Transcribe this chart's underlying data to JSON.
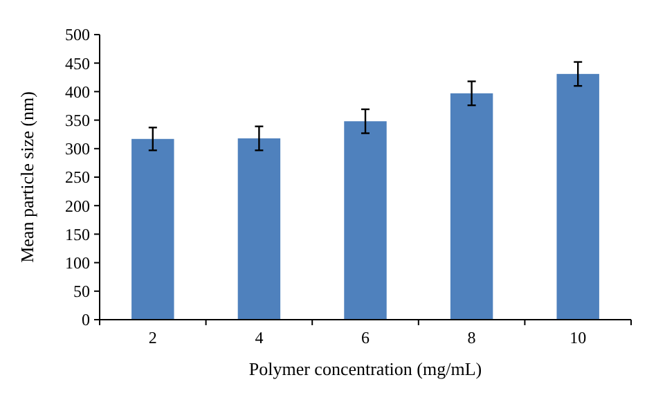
{
  "chart_data": {
    "type": "bar",
    "xlabel": "Polymer concentration (mg/mL)",
    "ylabel": "Mean particle size (nm)",
    "categories": [
      "2",
      "4",
      "6",
      "8",
      "10"
    ],
    "values": [
      317,
      318,
      348,
      397,
      431
    ],
    "errors": [
      20,
      21,
      21,
      21,
      21
    ],
    "color": "#4f81bd",
    "ylim": [
      0,
      500
    ],
    "yticks": [
      0,
      50,
      100,
      150,
      200,
      250,
      300,
      350,
      400,
      450,
      500
    ]
  }
}
